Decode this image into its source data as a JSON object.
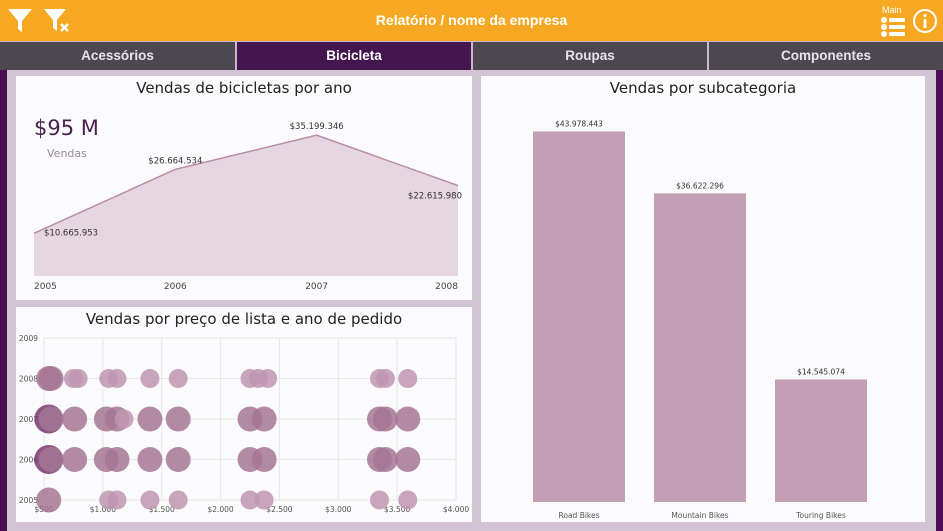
{
  "header": {
    "title": "Relatório / nome da empresa",
    "main_label": "Main",
    "icons": [
      "filter-icon",
      "clear-filter-icon",
      "menu-list-icon",
      "info-icon"
    ]
  },
  "tabs": [
    {
      "label": "Acessórios",
      "active": false
    },
    {
      "label": "Bicicleta",
      "active": true
    },
    {
      "label": "Roupas",
      "active": false
    },
    {
      "label": "Componentes",
      "active": false
    }
  ],
  "colors": {
    "accent": "#f6a823",
    "active_tab": "#451550",
    "bar": "#c29fb5",
    "area": "#e6d6df",
    "bubble_dark": "#7a3a6d",
    "bubble_light": "#bf95b1"
  },
  "kpi": {
    "value": "$95 M",
    "label": "Vendas"
  },
  "chart_data": [
    {
      "type": "area",
      "title": "Vendas de bicicletas por ano",
      "x": [
        "2005",
        "2006",
        "2007",
        "2008"
      ],
      "values": [
        10665953,
        26664534,
        35199346,
        22615980
      ],
      "data_labels": [
        "$10.665.953",
        "$26.664.534",
        "$35.199.346",
        "$22.615.980"
      ],
      "ylim": [
        0,
        40000000
      ],
      "grid": false
    },
    {
      "type": "scatter",
      "title": "Vendas por preço de lista e ano de pedido",
      "x_ticks": [
        "$500",
        "$1.000",
        "$1.500",
        "$2.000",
        "$2.500",
        "$3.000",
        "$3.500",
        "$4.000"
      ],
      "y_ticks": [
        "2009",
        "2008",
        "2007",
        "2006",
        "2005"
      ],
      "xlim": [
        500,
        4000
      ],
      "ylim": [
        2005,
        2009
      ],
      "grid": true,
      "points": [
        {
          "x": 540,
          "y": 2008,
          "s": 2
        },
        {
          "x": 560,
          "y": 2008,
          "s": 2
        },
        {
          "x": 750,
          "y": 2008,
          "s": 1
        },
        {
          "x": 790,
          "y": 2008,
          "s": 1
        },
        {
          "x": 1050,
          "y": 2008,
          "s": 1
        },
        {
          "x": 1120,
          "y": 2008,
          "s": 1
        },
        {
          "x": 1400,
          "y": 2008,
          "s": 1
        },
        {
          "x": 1640,
          "y": 2008,
          "s": 1
        },
        {
          "x": 2250,
          "y": 2008,
          "s": 1
        },
        {
          "x": 2320,
          "y": 2008,
          "s": 1
        },
        {
          "x": 2400,
          "y": 2008,
          "s": 1
        },
        {
          "x": 3350,
          "y": 2008,
          "s": 1
        },
        {
          "x": 3400,
          "y": 2008,
          "s": 1
        },
        {
          "x": 3590,
          "y": 2008,
          "s": 1
        },
        {
          "x": 540,
          "y": 2007,
          "s": 3
        },
        {
          "x": 560,
          "y": 2007,
          "s": 2
        },
        {
          "x": 760,
          "y": 2007,
          "s": 2
        },
        {
          "x": 1030,
          "y": 2007,
          "s": 2
        },
        {
          "x": 1120,
          "y": 2007,
          "s": 2
        },
        {
          "x": 1180,
          "y": 2007,
          "s": 1
        },
        {
          "x": 1400,
          "y": 2007,
          "s": 2
        },
        {
          "x": 1640,
          "y": 2007,
          "s": 2
        },
        {
          "x": 2250,
          "y": 2007,
          "s": 2
        },
        {
          "x": 2370,
          "y": 2007,
          "s": 2
        },
        {
          "x": 3350,
          "y": 2007,
          "s": 2
        },
        {
          "x": 3400,
          "y": 2007,
          "s": 2
        },
        {
          "x": 3590,
          "y": 2007,
          "s": 2
        },
        {
          "x": 540,
          "y": 2006,
          "s": 3
        },
        {
          "x": 560,
          "y": 2006,
          "s": 2
        },
        {
          "x": 760,
          "y": 2006,
          "s": 2
        },
        {
          "x": 1030,
          "y": 2006,
          "s": 2
        },
        {
          "x": 1120,
          "y": 2006,
          "s": 2
        },
        {
          "x": 1400,
          "y": 2006,
          "s": 2
        },
        {
          "x": 1640,
          "y": 2006,
          "s": 2
        },
        {
          "x": 2250,
          "y": 2006,
          "s": 2
        },
        {
          "x": 2370,
          "y": 2006,
          "s": 2
        },
        {
          "x": 3350,
          "y": 2006,
          "s": 2
        },
        {
          "x": 3400,
          "y": 2006,
          "s": 2
        },
        {
          "x": 3590,
          "y": 2006,
          "s": 2
        },
        {
          "x": 540,
          "y": 2005,
          "s": 2
        },
        {
          "x": 1050,
          "y": 2005,
          "s": 1
        },
        {
          "x": 1120,
          "y": 2005,
          "s": 1
        },
        {
          "x": 1400,
          "y": 2005,
          "s": 1
        },
        {
          "x": 1640,
          "y": 2005,
          "s": 1
        },
        {
          "x": 2250,
          "y": 2005,
          "s": 1
        },
        {
          "x": 2370,
          "y": 2005,
          "s": 1
        },
        {
          "x": 3350,
          "y": 2005,
          "s": 1
        },
        {
          "x": 3590,
          "y": 2005,
          "s": 1
        }
      ]
    },
    {
      "type": "bar",
      "title": "Vendas por subcategoria",
      "categories": [
        "Road Bikes",
        "Mountain Bikes",
        "Touring Bikes"
      ],
      "values": [
        43978443,
        36622296,
        14545074
      ],
      "data_labels": [
        "$43.978.443",
        "$36.622.296",
        "$14.545.074"
      ],
      "ylim": [
        0,
        47000000
      ]
    }
  ]
}
